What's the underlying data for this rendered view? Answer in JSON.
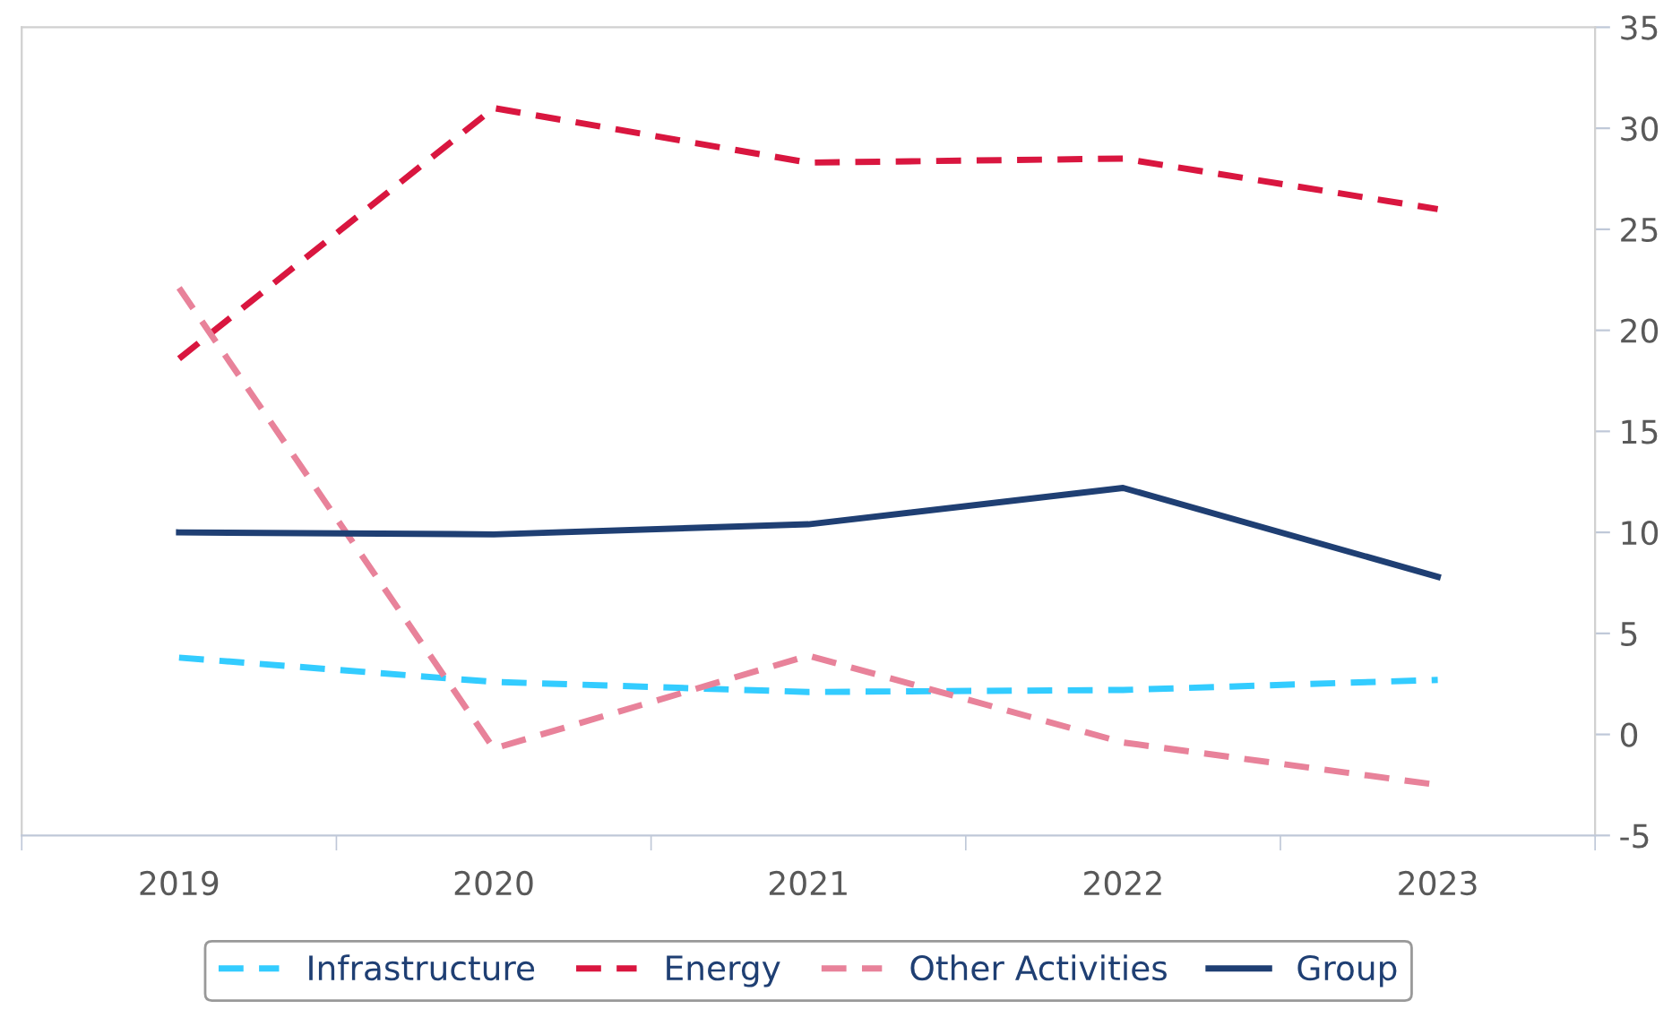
{
  "chart_data": {
    "type": "line",
    "categories": [
      "2019",
      "2020",
      "2021",
      "2022",
      "2023"
    ],
    "series": [
      {
        "name": "Infrastructure",
        "color": "#33ccff",
        "line_style": "dashed",
        "values": [
          3.8,
          2.6,
          2.1,
          2.2,
          2.7
        ]
      },
      {
        "name": "Energy",
        "color": "#d9163f",
        "line_style": "dashed",
        "values": [
          18.6,
          31.0,
          28.3,
          28.5,
          26.0
        ]
      },
      {
        "name": "Other Activities",
        "color": "#e8829a",
        "line_style": "dashed",
        "values": [
          22.1,
          -0.7,
          3.9,
          -0.4,
          -2.5
        ]
      },
      {
        "name": "Group",
        "color": "#1f3f73",
        "line_style": "solid",
        "values": [
          10.0,
          9.9,
          10.4,
          12.2,
          7.8
        ]
      }
    ],
    "ylim": [
      -5,
      35
    ],
    "yticks": [
      -5,
      0,
      5,
      10,
      15,
      20,
      25,
      30,
      35
    ],
    "grid": false,
    "legend": "bottom",
    "marker": "none"
  }
}
